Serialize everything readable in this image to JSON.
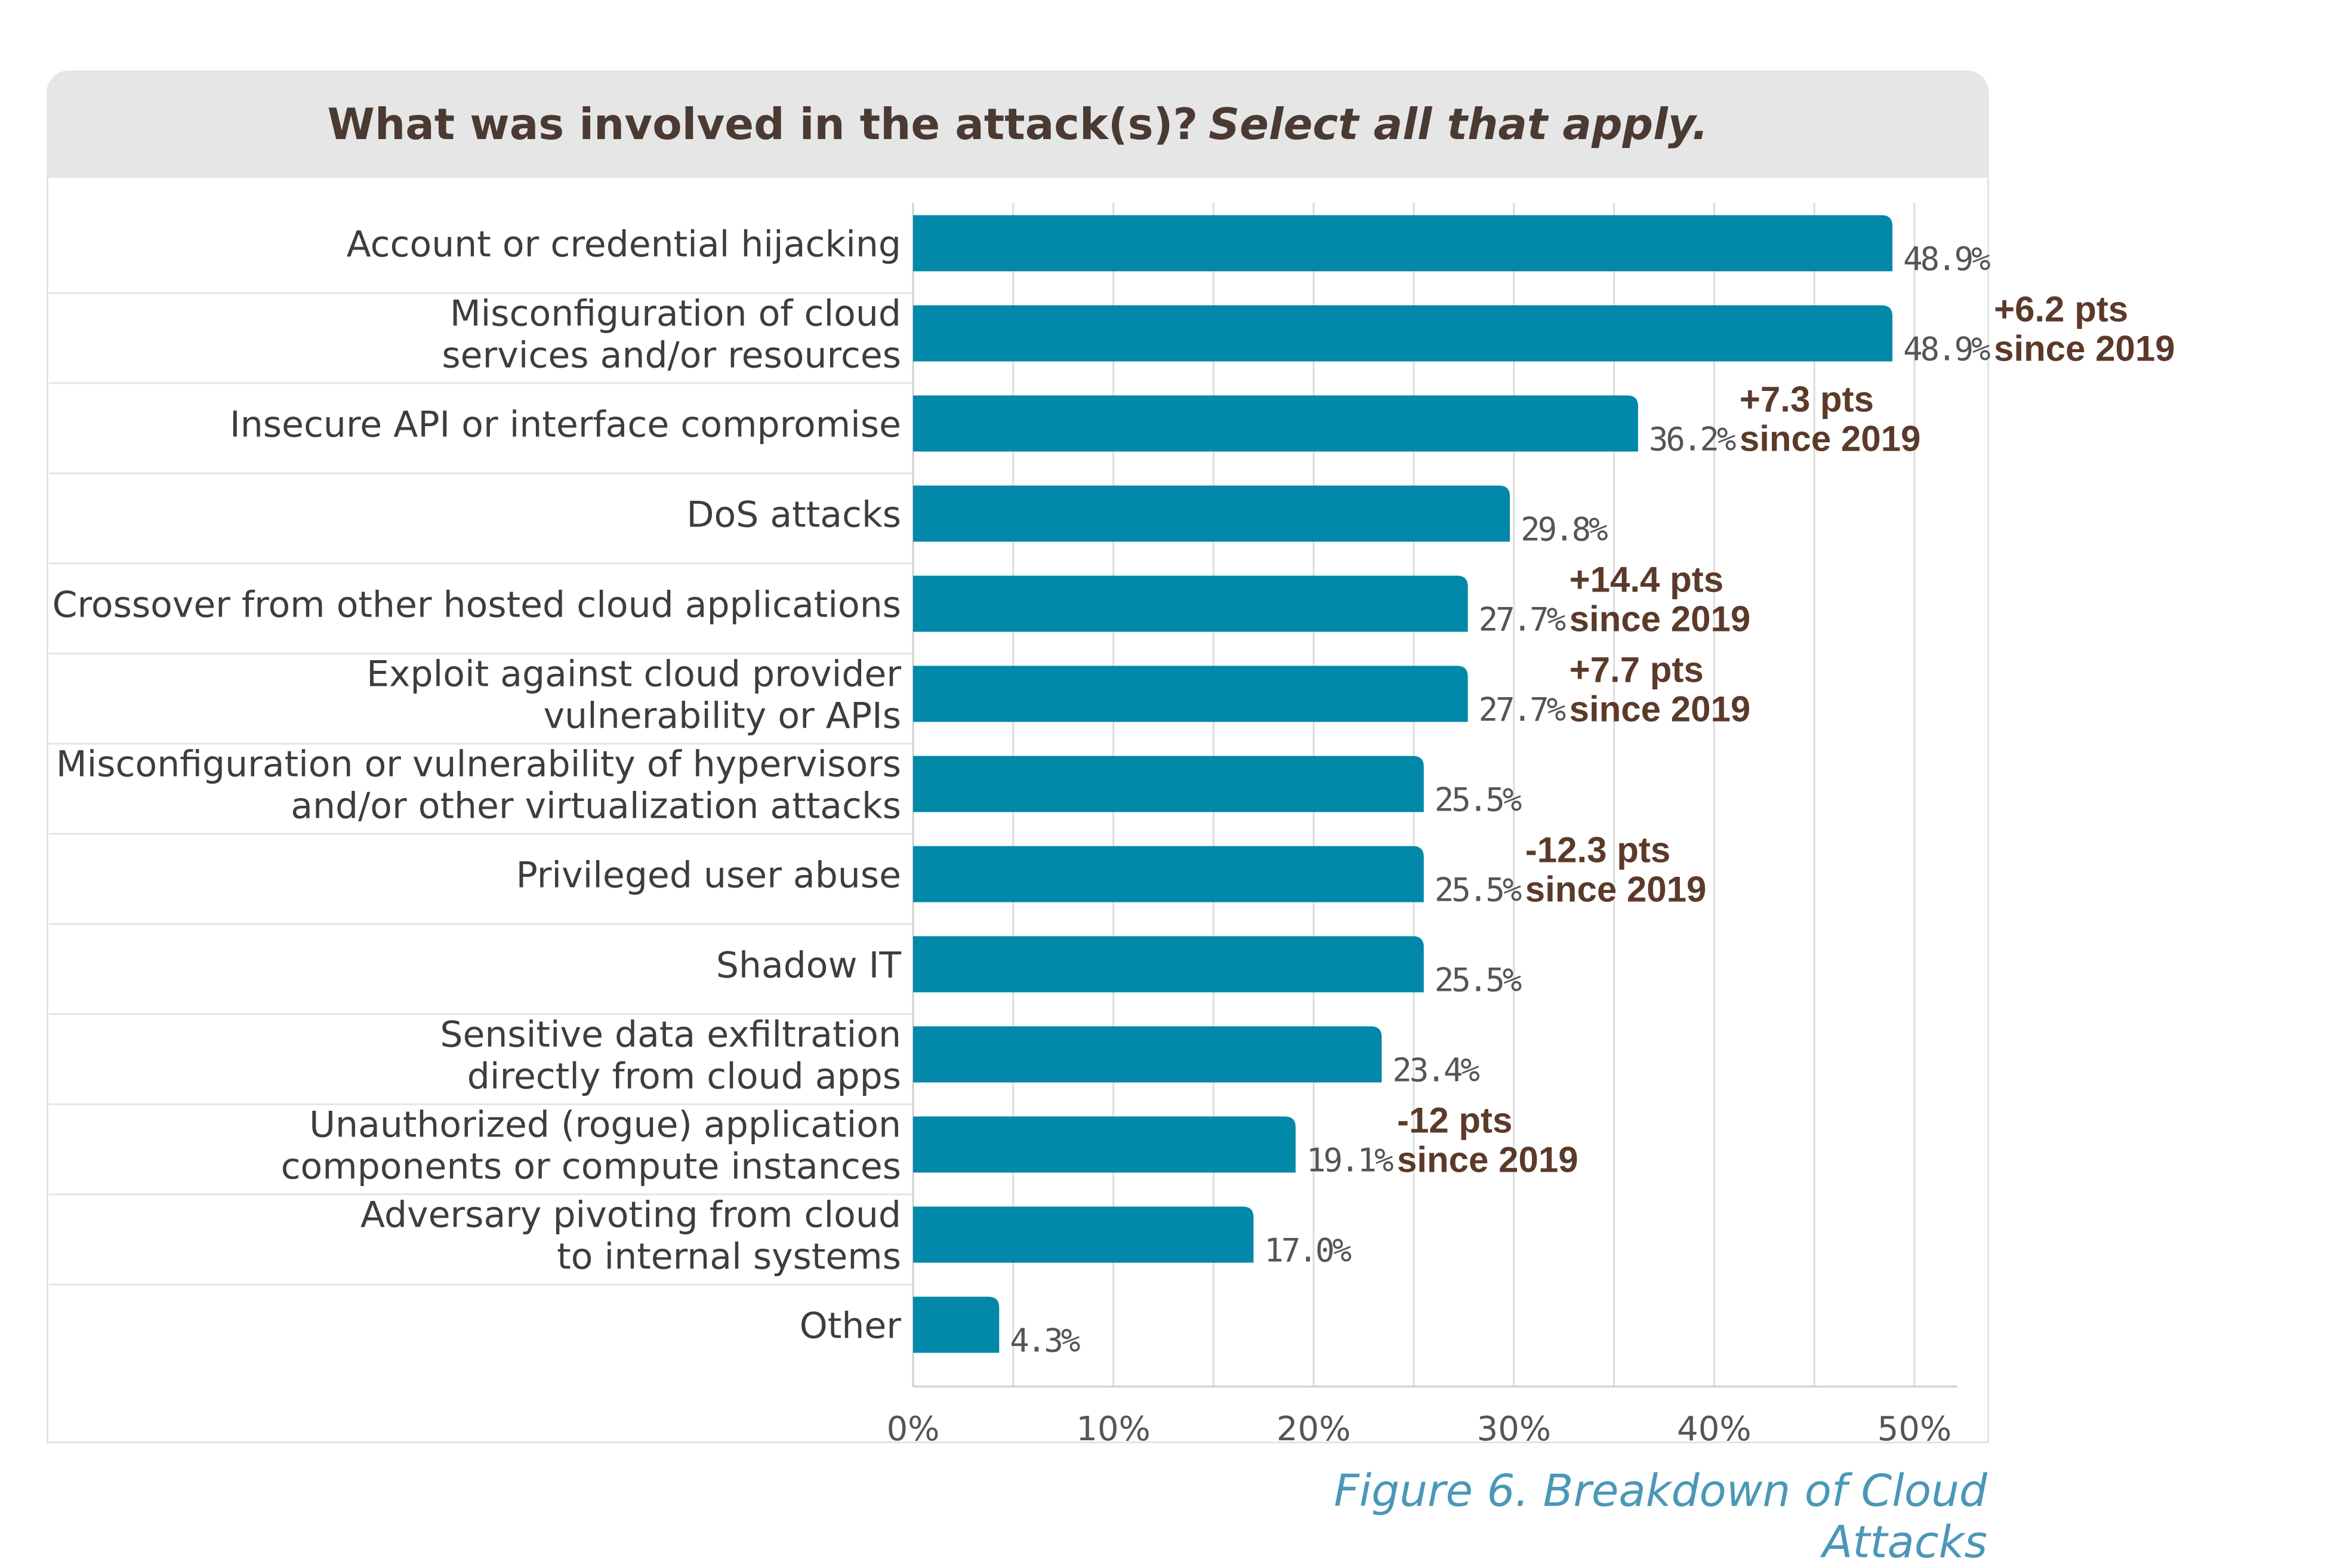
{
  "header": {
    "question": "What was involved in the attack(s)?",
    "instruction": "Select all that apply."
  },
  "caption": "Figure 6. Breakdown of Cloud Attacks",
  "colors": {
    "bar": "#0288a8",
    "annotation": "#5b3a29",
    "label": "#3d3d3d",
    "caption": "#4a97b8",
    "grid": "#dcdcdc"
  },
  "chart_data": {
    "type": "bar",
    "orientation": "horizontal",
    "title": "What was involved in the attack(s)? Select all that apply.",
    "xlim": [
      0,
      50
    ],
    "ticks": [
      "0%",
      "10%",
      "20%",
      "30%",
      "40%",
      "50%"
    ],
    "tick_values": [
      0,
      10,
      20,
      30,
      40,
      50
    ],
    "grid": true,
    "categories": [
      [
        "Account or credential hijacking"
      ],
      [
        "Misconfiguration of cloud",
        "services and/or resources"
      ],
      [
        "Insecure API or interface compromise"
      ],
      [
        "DoS attacks"
      ],
      [
        "Crossover from other hosted cloud applications"
      ],
      [
        "Exploit against cloud provider",
        "vulnerability or APIs"
      ],
      [
        "Misconfiguration or vulnerability of hypervisors",
        "and/or other virtualization attacks"
      ],
      [
        "Privileged user abuse"
      ],
      [
        "Shadow IT"
      ],
      [
        "Sensitive data exfiltration",
        "directly from cloud apps"
      ],
      [
        "Unauthorized (rogue) application",
        "components or compute instances"
      ],
      [
        "Adversary pivoting from cloud",
        "to internal systems"
      ],
      [
        "Other"
      ]
    ],
    "values": [
      48.9,
      48.9,
      36.2,
      29.8,
      27.7,
      27.7,
      25.5,
      25.5,
      25.5,
      23.4,
      19.1,
      17.0,
      4.3
    ],
    "value_labels": [
      "48.9%",
      "48.9%",
      "36.2%",
      "29.8%",
      "27.7%",
      "27.7%",
      "25.5%",
      "25.5%",
      "25.5%",
      "23.4%",
      "19.1%",
      "17.0%",
      "4.3%"
    ],
    "annotations": [
      {
        "index": 1,
        "lines": [
          "+6.2 pts",
          "since 2019"
        ]
      },
      {
        "index": 2,
        "lines": [
          "+7.3 pts",
          "since 2019"
        ]
      },
      {
        "index": 4,
        "lines": [
          "+14.4 pts",
          "since 2019"
        ]
      },
      {
        "index": 5,
        "lines": [
          "+7.7 pts",
          "since 2019"
        ]
      },
      {
        "index": 7,
        "lines": [
          "-12.3 pts",
          "since 2019"
        ]
      },
      {
        "index": 10,
        "lines": [
          "-12 pts",
          "since 2019"
        ]
      }
    ]
  }
}
